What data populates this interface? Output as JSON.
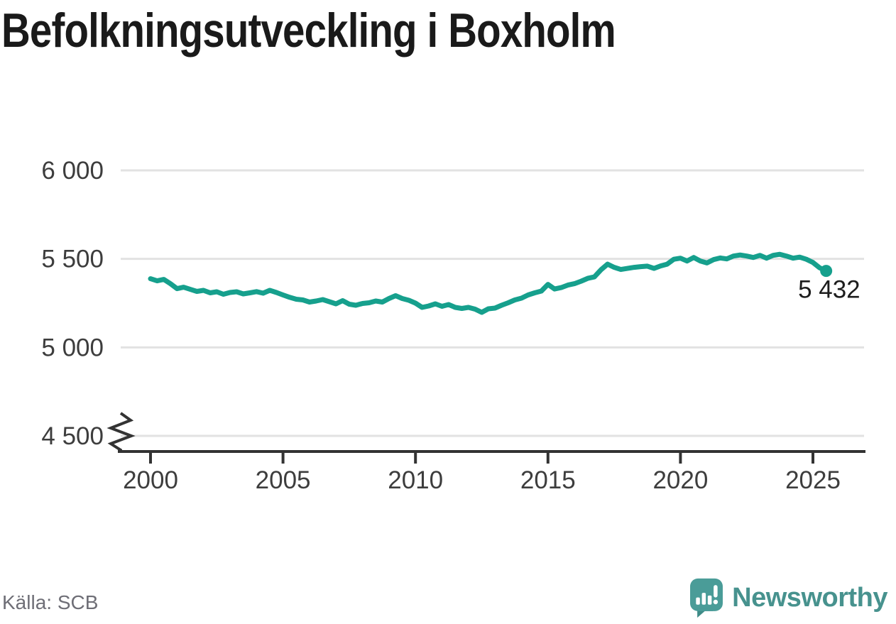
{
  "title": "Befolkningsutveckling i Boxholm",
  "source": "Källa: SCB",
  "logo": {
    "text": "Newsworthy",
    "icon": "newsworthy-bubble-chart-icon"
  },
  "colors": {
    "line": "#16a08d",
    "grid": "#e2e2e2",
    "axis": "#333333",
    "tick_label": "#3d3d3d",
    "title": "#1a1a1a",
    "source": "#6e6e76",
    "logo": "#47928e",
    "last_label": "#1d1d1d"
  },
  "chart_data": {
    "type": "line",
    "title": "Befolkningsutveckling i Boxholm",
    "series_name": "Befolkning",
    "x_unit": "year (quarterly data)",
    "x_start": 2000,
    "x_step": 0.25,
    "values": [
      5388,
      5376,
      5384,
      5360,
      5332,
      5340,
      5328,
      5316,
      5322,
      5308,
      5314,
      5300,
      5310,
      5314,
      5302,
      5308,
      5315,
      5306,
      5322,
      5310,
      5296,
      5283,
      5272,
      5268,
      5256,
      5262,
      5270,
      5258,
      5246,
      5264,
      5244,
      5238,
      5248,
      5252,
      5262,
      5256,
      5276,
      5292,
      5276,
      5266,
      5250,
      5226,
      5234,
      5246,
      5232,
      5242,
      5226,
      5220,
      5226,
      5216,
      5198,
      5218,
      5222,
      5238,
      5252,
      5268,
      5278,
      5296,
      5308,
      5318,
      5356,
      5330,
      5338,
      5352,
      5360,
      5374,
      5390,
      5398,
      5438,
      5470,
      5452,
      5440,
      5446,
      5452,
      5456,
      5459,
      5446,
      5460,
      5470,
      5498,
      5504,
      5488,
      5508,
      5488,
      5477,
      5496,
      5505,
      5500,
      5516,
      5522,
      5516,
      5508,
      5520,
      5504,
      5520,
      5526,
      5516,
      5504,
      5510,
      5498,
      5480,
      5450,
      5432
    ],
    "y_ticks": [
      {
        "value": 6000,
        "label": "6 000"
      },
      {
        "value": 5500,
        "label": "5 500"
      },
      {
        "value": 5000,
        "label": "5 000"
      },
      {
        "value": 4500,
        "label": "4 500"
      }
    ],
    "x_ticks": [
      {
        "value": 2000,
        "label": "2000"
      },
      {
        "value": 2005,
        "label": "2005"
      },
      {
        "value": 2010,
        "label": "2010"
      },
      {
        "value": 2015,
        "label": "2015"
      },
      {
        "value": 2020,
        "label": "2020"
      },
      {
        "value": 2025,
        "label": "2025"
      }
    ],
    "ylim": [
      4500,
      6000
    ],
    "axis_break": true,
    "grid": "horizontal",
    "legend": "none",
    "last_value": 5432,
    "last_label": "5 432"
  }
}
